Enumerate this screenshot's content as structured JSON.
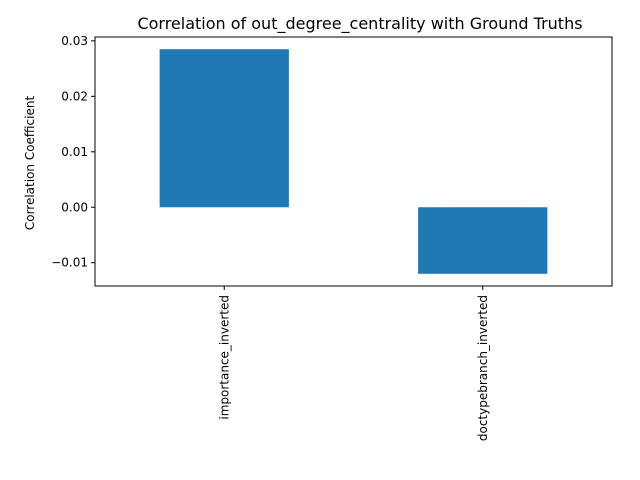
{
  "chart_data": {
    "type": "bar",
    "title": "Correlation of out_degree_centrality with Ground Truths",
    "xlabel": "",
    "ylabel": "Correlation Coefficient",
    "categories": [
      "importance_inverted",
      "doctypebranch_inverted"
    ],
    "values": [
      0.0285,
      -0.012
    ],
    "ylim": [
      -0.0142,
      0.0307
    ],
    "yticks": [
      -0.01,
      0.0,
      0.01,
      0.02,
      0.03
    ],
    "ytick_labels": [
      "−0.01",
      "0.00",
      "0.01",
      "0.02",
      "0.03"
    ],
    "bar_color": "#1f77b4",
    "grid": false,
    "legend": "none"
  }
}
